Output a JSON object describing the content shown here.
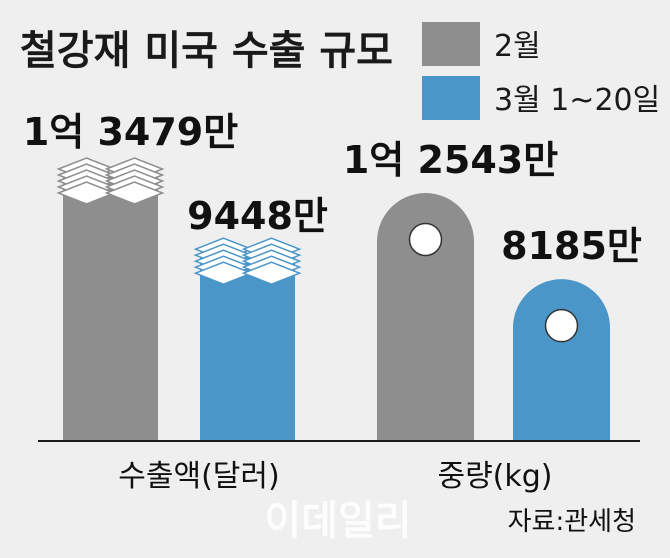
{
  "chart_data": {
    "type": "bar",
    "title": "철강재 미국 수출 규모",
    "categories": [
      "수출액(달러)",
      "중량(kg)"
    ],
    "series": [
      {
        "name": "2월",
        "values": [
          134790000,
          125430000
        ],
        "labels": [
          "1억 3479만",
          "1억 2543만"
        ]
      },
      {
        "name": "3월 1~20일",
        "values": [
          94480000,
          81850000
        ],
        "labels": [
          "9448만",
          "8185만"
        ]
      }
    ],
    "colors": {
      "series_0": "#8e8e8e",
      "series_1": "#4a96c8",
      "background": "#efefef"
    },
    "legend_position": "top-right",
    "grid": false,
    "bar_styles": [
      "money-stack",
      "rounded-weight"
    ]
  },
  "source": "자료:관세청",
  "watermark": "이데일리"
}
